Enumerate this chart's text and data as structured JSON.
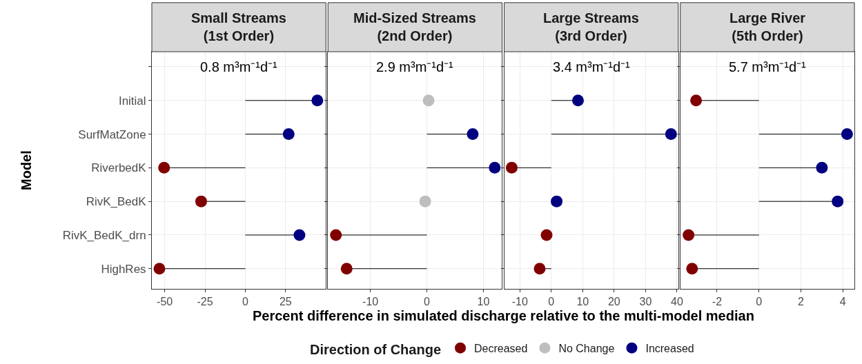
{
  "chart_data": [
    {
      "type": "lollipop",
      "orientation": "horizontal",
      "title": "Small Streams\n(1st Order)",
      "xlabel": "Percent difference in simulated discharge relative to the multi-model median",
      "ylabel": "Model",
      "legend_title": "Direction of Change",
      "legend": "bottom",
      "grid": true,
      "marker": "circle",
      "categories": [
        null,
        "Initial",
        "SurfMatZone",
        "RiverbedK",
        "RivK_BedK",
        "RivK_BedK_drn",
        "HighRes"
      ],
      "xlim": [
        -58,
        50
      ],
      "xticks": [
        -50,
        -25,
        0,
        25
      ],
      "annotations": [
        "0.8 m³m⁻¹d⁻¹"
      ],
      "series": [
        {
          "name": "Decreased",
          "color": "#800000",
          "values": [
            null,
            null,
            null,
            -50.4,
            -27.4,
            null,
            -53.3
          ]
        },
        {
          "name": "No Change",
          "color": "#bebebe",
          "values": [
            null,
            null,
            null,
            null,
            null,
            null,
            null
          ]
        },
        {
          "name": "Increased",
          "color": "#000080",
          "values": [
            null,
            44.7,
            26.9,
            null,
            null,
            33.6,
            null
          ]
        }
      ]
    },
    {
      "type": "lollipop",
      "orientation": "horizontal",
      "title": "Mid-Sized Streams\n(2nd Order)",
      "grid": true,
      "marker": "circle",
      "tick_labels": "x",
      "xlim": [
        -17.5,
        13.3
      ],
      "xticks": [
        -10,
        0,
        10
      ],
      "annotations": [
        "2.9 m³m⁻¹d⁻¹"
      ],
      "series": [
        {
          "color": "#800000",
          "values": [
            null,
            null,
            null,
            null,
            null,
            -16.1,
            -14.2
          ]
        },
        {
          "color": "#bebebe",
          "values": [
            null,
            0.3,
            null,
            null,
            -0.3,
            null,
            null
          ]
        },
        {
          "color": "#000080",
          "values": [
            null,
            null,
            8.1,
            12.0,
            null,
            null,
            null
          ]
        }
      ]
    },
    {
      "type": "lollipop",
      "orientation": "horizontal",
      "title": "Large Streams\n(3rd Order)",
      "grid": true,
      "marker": "circle",
      "tick_labels": "x",
      "xlim": [
        -15,
        40.4
      ],
      "xticks": [
        -10,
        0,
        10,
        20,
        30,
        40
      ],
      "annotations": [
        "3.4 m³m⁻¹d⁻¹"
      ],
      "series": [
        {
          "color": "#800000",
          "values": [
            null,
            null,
            null,
            -12.6,
            null,
            -1.5,
            -3.7
          ]
        },
        {
          "color": "#000080",
          "values": [
            null,
            8.5,
            38.1,
            null,
            1.7,
            null,
            null
          ]
        }
      ]
    },
    {
      "type": "lollipop",
      "orientation": "horizontal",
      "title": "Large River\n(5th Order)",
      "grid": true,
      "marker": "circle",
      "tick_labels": "x",
      "xlim": [
        -3.75,
        4.55
      ],
      "xticks": [
        -2,
        0,
        2,
        4
      ],
      "annotations": [
        "5.7 m³m⁻¹d⁻¹"
      ],
      "series": [
        {
          "color": "#800000",
          "values": [
            null,
            -3.0,
            null,
            null,
            null,
            -3.36,
            -3.19
          ]
        },
        {
          "color": "#000080",
          "values": [
            null,
            null,
            4.2,
            3.0,
            3.75,
            null,
            null
          ]
        }
      ]
    }
  ]
}
